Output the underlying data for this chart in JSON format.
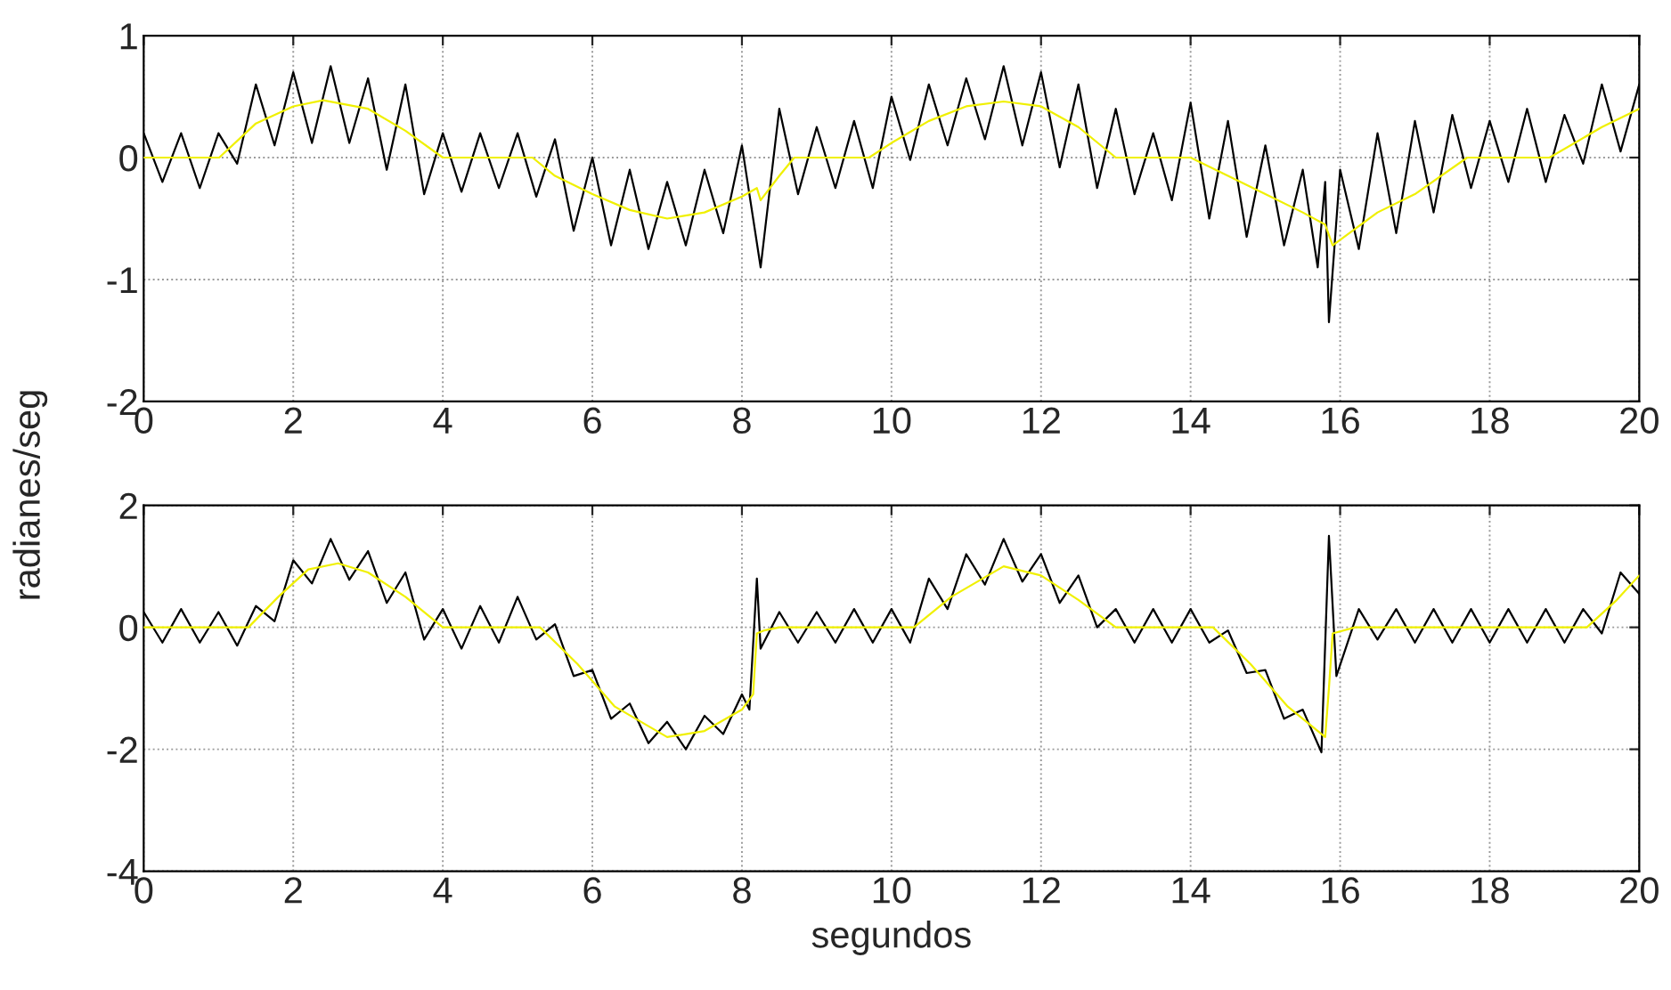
{
  "chart_data": [
    {
      "type": "line",
      "ylabel": "radianes/seg",
      "xlim": [
        0,
        20
      ],
      "xticks": [
        0,
        2,
        4,
        6,
        8,
        10,
        12,
        14,
        16,
        18,
        20
      ],
      "ylim": [
        -2,
        1
      ],
      "yticks": [
        -2,
        -1,
        0,
        1
      ],
      "grid": true,
      "line_style": "solid",
      "x": [
        0,
        0.5,
        1,
        1.01,
        1.5,
        2,
        2.4,
        3,
        3.5,
        4,
        4.5,
        5,
        5.2,
        5.5,
        6,
        6.5,
        7,
        7.5,
        8,
        8.2,
        8.25,
        8.5,
        8.7,
        9,
        9.5,
        9.7,
        10,
        10.5,
        11,
        11.5,
        12,
        12.5,
        13,
        13.5,
        14,
        14.5,
        15,
        15.5,
        15.8,
        15.9,
        16.5,
        17,
        17.7,
        18,
        18.5,
        18.8,
        19.5,
        20
      ],
      "series": [
        {
          "color": "#000000",
          "x": [
            0,
            0.25,
            0.5,
            0.75,
            1,
            1.25,
            1.5,
            1.75,
            2,
            2.25,
            2.5,
            2.75,
            3,
            3.25,
            3.5,
            3.75,
            4,
            4.25,
            4.5,
            4.75,
            5,
            5.25,
            5.5,
            5.75,
            6,
            6.25,
            6.5,
            6.75,
            7,
            7.25,
            7.5,
            7.75,
            8,
            8.25,
            8.5,
            8.75,
            9,
            9.25,
            9.5,
            9.75,
            10,
            10.25,
            10.5,
            10.75,
            11,
            11.25,
            11.5,
            11.75,
            12,
            12.25,
            12.5,
            12.75,
            13,
            13.25,
            13.5,
            13.75,
            14,
            14.25,
            14.5,
            14.75,
            15,
            15.25,
            15.5,
            15.7,
            15.8,
            15.85,
            16,
            16.25,
            16.5,
            16.75,
            17,
            17.25,
            17.5,
            17.75,
            18,
            18.25,
            18.5,
            18.75,
            19,
            19.25,
            19.5,
            19.75,
            20
          ],
          "values": [
            0.2,
            -0.2,
            0.2,
            -0.25,
            0.2,
            -0.05,
            0.6,
            0.1,
            0.7,
            0.12,
            0.75,
            0.12,
            0.65,
            -0.1,
            0.6,
            -0.3,
            0.2,
            -0.28,
            0.2,
            -0.25,
            0.2,
            -0.32,
            0.15,
            -0.6,
            0,
            -0.72,
            -0.1,
            -0.75,
            -0.2,
            -0.72,
            -0.1,
            -0.62,
            0.1,
            -0.9,
            0.4,
            -0.3,
            0.25,
            -0.25,
            0.3,
            -0.25,
            0.5,
            -0.02,
            0.6,
            0.1,
            0.65,
            0.15,
            0.75,
            0.1,
            0.7,
            -0.08,
            0.6,
            -0.25,
            0.4,
            -0.3,
            0.2,
            -0.35,
            0.45,
            -0.5,
            0.3,
            -0.65,
            0.1,
            -0.72,
            -0.1,
            -0.9,
            -0.2,
            -1.35,
            -0.1,
            -0.75,
            0.2,
            -0.62,
            0.3,
            -0.45,
            0.35,
            -0.25,
            0.3,
            -0.2,
            0.4,
            -0.2,
            0.35,
            -0.05,
            0.6,
            0.05,
            0.6
          ]
        },
        {
          "color": "#f0f000",
          "values": [
            0,
            0,
            0,
            0,
            0.28,
            0.42,
            0.47,
            0.4,
            0.22,
            0,
            0,
            0,
            0,
            -0.15,
            -0.3,
            -0.43,
            -0.5,
            -0.45,
            -0.32,
            -0.25,
            -0.35,
            -0.15,
            0,
            0,
            0,
            0,
            0.12,
            0.3,
            0.42,
            0.46,
            0.42,
            0.25,
            0,
            0,
            0,
            -0.15,
            -0.3,
            -0.45,
            -0.55,
            -0.72,
            -0.45,
            -0.3,
            0,
            0,
            0,
            0,
            0.25,
            0.4
          ]
        }
      ]
    },
    {
      "type": "line",
      "xlabel": "segundos",
      "xlim": [
        0,
        20
      ],
      "xticks": [
        0,
        2,
        4,
        6,
        8,
        10,
        12,
        14,
        16,
        18,
        20
      ],
      "ylim": [
        -4,
        2
      ],
      "yticks": [
        -4,
        -2,
        0,
        2
      ],
      "grid": true,
      "line_style": "solid",
      "x": [
        0,
        0.5,
        1,
        1.4,
        1.8,
        2.2,
        2.6,
        3,
        3.5,
        4,
        4.5,
        5,
        5.3,
        5.8,
        6.3,
        7,
        7.5,
        8,
        8.15,
        8.2,
        8.3,
        8.5,
        9,
        9.5,
        10,
        10.3,
        10.8,
        11.5,
        12,
        12.5,
        13,
        13.5,
        14,
        14.3,
        14.8,
        15.3,
        15.8,
        15.85,
        15.9,
        16.2,
        17,
        18,
        19,
        19.3,
        19.7,
        20
      ],
      "series": [
        {
          "color": "#000000",
          "x": [
            0,
            0.25,
            0.5,
            0.75,
            1,
            1.25,
            1.5,
            1.75,
            2,
            2.25,
            2.5,
            2.75,
            3,
            3.25,
            3.5,
            3.75,
            4,
            4.25,
            4.5,
            4.75,
            5,
            5.25,
            5.5,
            5.75,
            6,
            6.25,
            6.5,
            6.75,
            7,
            7.25,
            7.5,
            7.75,
            8,
            8.1,
            8.2,
            8.25,
            8.5,
            8.75,
            9,
            9.25,
            9.5,
            9.75,
            10,
            10.25,
            10.5,
            10.75,
            11,
            11.25,
            11.5,
            11.75,
            12,
            12.25,
            12.5,
            12.75,
            13,
            13.25,
            13.5,
            13.75,
            14,
            14.25,
            14.5,
            14.75,
            15,
            15.25,
            15.5,
            15.75,
            15.85,
            15.95,
            16.25,
            16.5,
            16.75,
            17,
            17.25,
            17.5,
            17.75,
            18,
            18.25,
            18.5,
            18.75,
            19,
            19.25,
            19.5,
            19.75,
            20
          ],
          "values": [
            0.25,
            -0.25,
            0.3,
            -0.25,
            0.25,
            -0.3,
            0.35,
            0.1,
            1.1,
            0.72,
            1.45,
            0.78,
            1.25,
            0.4,
            0.9,
            -0.2,
            0.3,
            -0.35,
            0.35,
            -0.25,
            0.5,
            -0.2,
            0.05,
            -0.8,
            -0.7,
            -1.5,
            -1.25,
            -1.9,
            -1.55,
            -2.0,
            -1.45,
            -1.75,
            -1.1,
            -1.35,
            0.8,
            -0.35,
            0.25,
            -0.25,
            0.25,
            -0.25,
            0.3,
            -0.25,
            0.3,
            -0.25,
            0.8,
            0.3,
            1.2,
            0.7,
            1.45,
            0.75,
            1.2,
            0.4,
            0.85,
            0,
            0.3,
            -0.25,
            0.3,
            -0.25,
            0.3,
            -0.25,
            -0.05,
            -0.75,
            -0.7,
            -1.5,
            -1.35,
            -2.05,
            1.5,
            -0.8,
            0.3,
            -0.2,
            0.3,
            -0.25,
            0.3,
            -0.25,
            0.3,
            -0.25,
            0.3,
            -0.25,
            0.3,
            -0.25,
            0.3,
            -0.1,
            0.9,
            0.55
          ]
        },
        {
          "color": "#f0f000",
          "values": [
            0,
            0,
            0,
            0,
            0.5,
            0.95,
            1.05,
            0.9,
            0.5,
            0,
            0,
            0,
            0,
            -0.6,
            -1.3,
            -1.8,
            -1.7,
            -1.35,
            -1.1,
            -0.1,
            -0.05,
            0,
            0,
            0,
            0,
            0,
            0.5,
            1.0,
            0.85,
            0.45,
            0,
            0,
            0,
            0,
            -0.6,
            -1.3,
            -1.8,
            -1.0,
            -0.1,
            0,
            0,
            0,
            0,
            0,
            0.45,
            0.85
          ]
        }
      ]
    }
  ]
}
